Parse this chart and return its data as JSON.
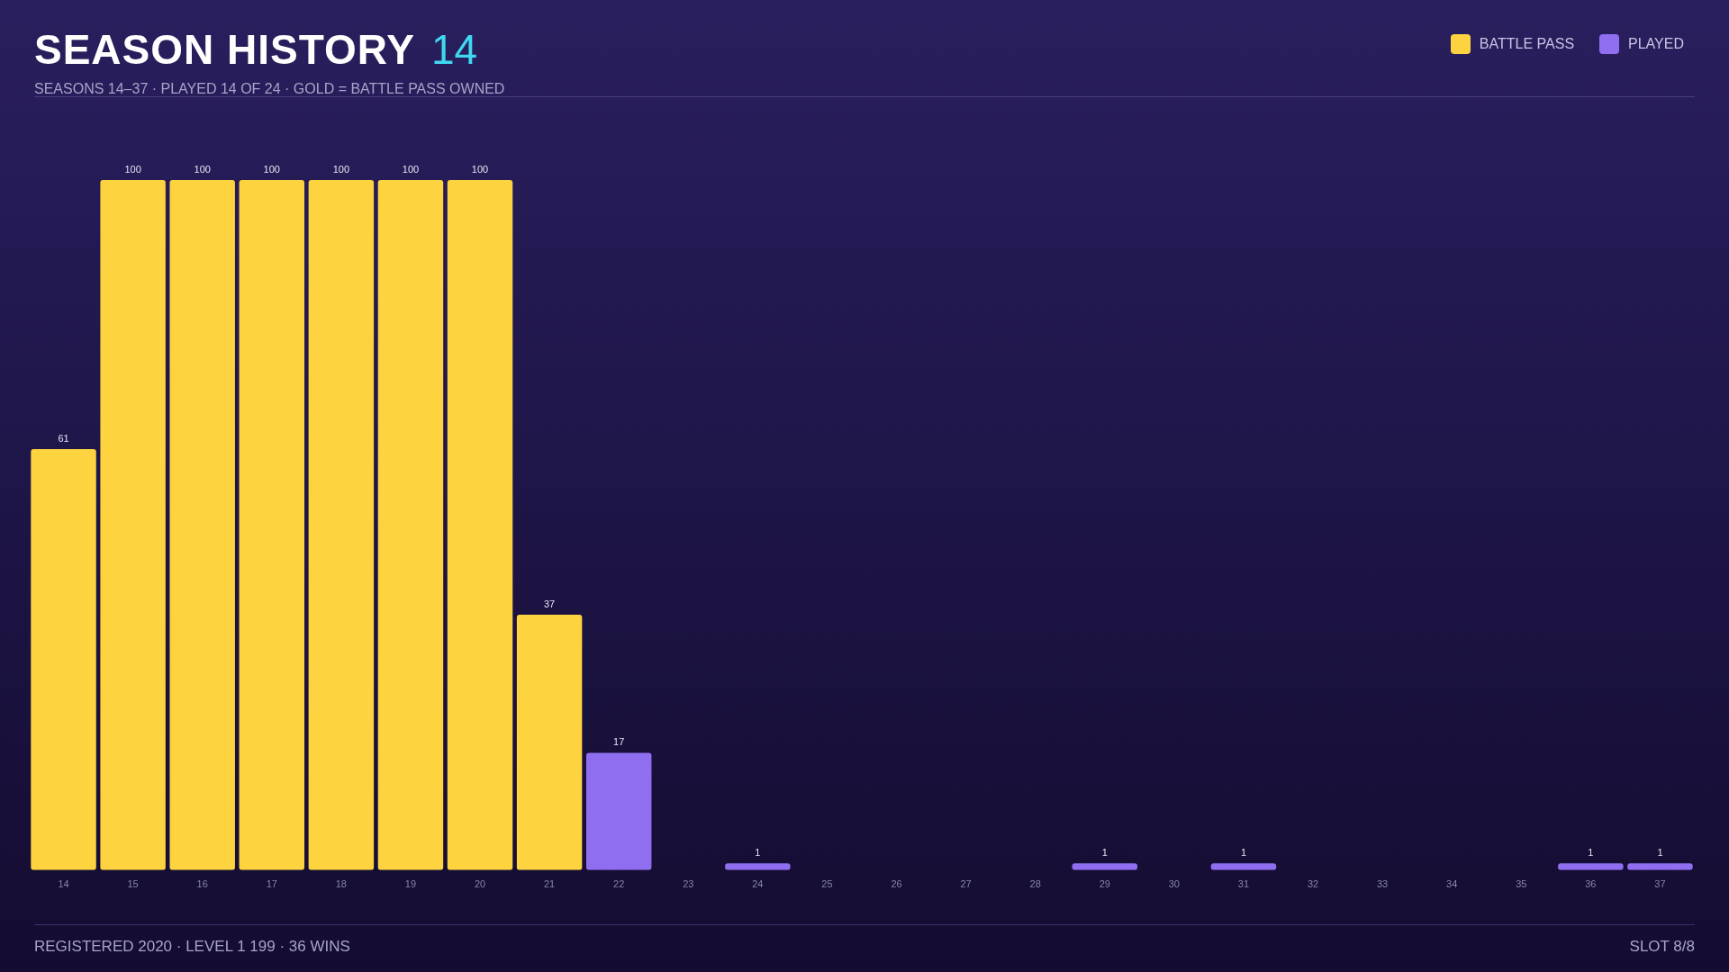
{
  "chart_data": {
    "type": "bar",
    "title": "SEASON HISTORY",
    "subtitle": "SEASONS 14–37 · PLAYED 14 OF 24 · GOLD = BATTLE PASS OWNED",
    "annotations": [
      "14",
      "REGISTERED 2020 · LEVEL 1 199 · 36 WINS",
      "SLOT 8/8"
    ],
    "categories": [
      "14",
      "15",
      "16",
      "17",
      "18",
      "19",
      "20",
      "21",
      "22",
      "23",
      "24",
      "25",
      "26",
      "27",
      "28",
      "29",
      "30",
      "31",
      "32",
      "33",
      "34",
      "35",
      "36",
      "37"
    ],
    "series": [
      {
        "name": "BATTLE PASS",
        "color": "#fdd340",
        "values": [
          61,
          100,
          100,
          100,
          100,
          100,
          100,
          37,
          null,
          null,
          null,
          null,
          null,
          null,
          null,
          null,
          null,
          null,
          null,
          null,
          null,
          null,
          null,
          null
        ]
      },
      {
        "name": "PLAYED",
        "color": "#8f6ff0",
        "values": [
          null,
          null,
          null,
          null,
          null,
          null,
          null,
          null,
          17,
          null,
          1,
          null,
          null,
          null,
          null,
          1,
          null,
          1,
          null,
          null,
          null,
          null,
          1,
          1
        ]
      }
    ],
    "data_labels": true,
    "legend": "top right",
    "grid": false
  }
}
